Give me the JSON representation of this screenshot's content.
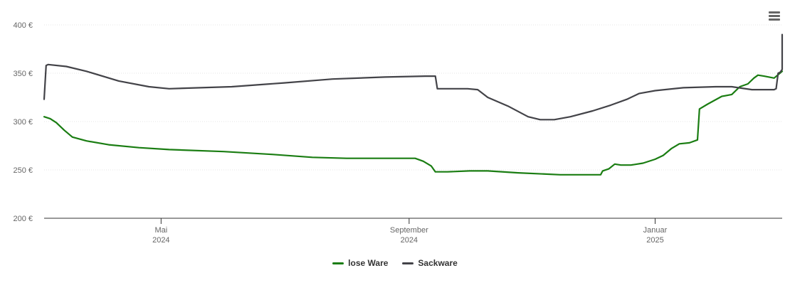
{
  "chart_data": {
    "type": "line",
    "title": "",
    "xlabel": "",
    "ylabel": "",
    "ylim": [
      200,
      400
    ],
    "y_ticks": [
      {
        "value": 400,
        "label": "400 €"
      },
      {
        "value": 350,
        "label": "350 €"
      },
      {
        "value": 300,
        "label": "300 €"
      },
      {
        "value": 250,
        "label": "250 €"
      },
      {
        "value": 200,
        "label": "200 €"
      }
    ],
    "xlim": [
      "2024-03-04",
      "2025-03-05"
    ],
    "x_ticks": [
      {
        "date": "2024-05-01",
        "label": "Mai",
        "sublabel": "2024"
      },
      {
        "date": "2024-09-01",
        "label": "September",
        "sublabel": "2024"
      },
      {
        "date": "2025-01-01",
        "label": "Januar",
        "sublabel": "2025"
      }
    ],
    "grid": "horizontal",
    "legend_position": "bottom-center",
    "series": [
      {
        "name": "lose Ware",
        "color": "#1a7d12",
        "points": [
          [
            "2024-03-04",
            305
          ],
          [
            "2024-03-07",
            303
          ],
          [
            "2024-03-10",
            299
          ],
          [
            "2024-03-14",
            291
          ],
          [
            "2024-03-18",
            284
          ],
          [
            "2024-03-25",
            280
          ],
          [
            "2024-04-05",
            276
          ],
          [
            "2024-04-20",
            273
          ],
          [
            "2024-05-05",
            271
          ],
          [
            "2024-06-01",
            269
          ],
          [
            "2024-06-25",
            266
          ],
          [
            "2024-07-15",
            263
          ],
          [
            "2024-08-01",
            262
          ],
          [
            "2024-08-20",
            262
          ],
          [
            "2024-09-01",
            262
          ],
          [
            "2024-09-04",
            262
          ],
          [
            "2024-09-08",
            259
          ],
          [
            "2024-09-12",
            254
          ],
          [
            "2024-09-14",
            248
          ],
          [
            "2024-09-20",
            248
          ],
          [
            "2024-10-01",
            249
          ],
          [
            "2024-10-10",
            249
          ],
          [
            "2024-10-25",
            247
          ],
          [
            "2024-11-15",
            245
          ],
          [
            "2024-12-05",
            245
          ],
          [
            "2024-12-06",
            249
          ],
          [
            "2024-12-09",
            251
          ],
          [
            "2024-12-12",
            256
          ],
          [
            "2024-12-15",
            255
          ],
          [
            "2024-12-20",
            255
          ],
          [
            "2024-12-26",
            257
          ],
          [
            "2025-01-01",
            261
          ],
          [
            "2025-01-05",
            265
          ],
          [
            "2025-01-09",
            272
          ],
          [
            "2025-01-13",
            277
          ],
          [
            "2025-01-18",
            278
          ],
          [
            "2025-01-22",
            281
          ],
          [
            "2025-01-23",
            313
          ],
          [
            "2025-01-27",
            318
          ],
          [
            "2025-02-03",
            326
          ],
          [
            "2025-02-08",
            328
          ],
          [
            "2025-02-12",
            336
          ],
          [
            "2025-02-16",
            339
          ],
          [
            "2025-02-19",
            345
          ],
          [
            "2025-02-21",
            348
          ],
          [
            "2025-02-24",
            347
          ],
          [
            "2025-03-01",
            345
          ],
          [
            "2025-03-05",
            352
          ]
        ]
      },
      {
        "name": "Sackware",
        "color": "#434348",
        "points": [
          [
            "2024-03-04",
            323
          ],
          [
            "2024-03-05",
            358
          ],
          [
            "2024-03-06",
            359
          ],
          [
            "2024-03-15",
            357
          ],
          [
            "2024-03-25",
            352
          ],
          [
            "2024-04-10",
            342
          ],
          [
            "2024-04-25",
            336
          ],
          [
            "2024-05-05",
            334
          ],
          [
            "2024-06-05",
            336
          ],
          [
            "2024-07-01",
            340
          ],
          [
            "2024-07-25",
            344
          ],
          [
            "2024-08-20",
            346
          ],
          [
            "2024-09-09",
            347
          ],
          [
            "2024-09-14",
            347
          ],
          [
            "2024-09-15",
            334
          ],
          [
            "2024-09-30",
            334
          ],
          [
            "2024-10-05",
            333
          ],
          [
            "2024-10-10",
            325
          ],
          [
            "2024-10-20",
            316
          ],
          [
            "2024-10-30",
            305
          ],
          [
            "2024-11-05",
            302
          ],
          [
            "2024-11-12",
            302
          ],
          [
            "2024-11-20",
            305
          ],
          [
            "2024-12-01",
            311
          ],
          [
            "2024-12-10",
            317
          ],
          [
            "2024-12-18",
            323
          ],
          [
            "2024-12-24",
            329
          ],
          [
            "2025-01-01",
            332
          ],
          [
            "2025-01-15",
            335
          ],
          [
            "2025-01-31",
            336
          ],
          [
            "2025-02-08",
            336
          ],
          [
            "2025-02-18",
            333
          ],
          [
            "2025-02-25",
            333
          ],
          [
            "2025-02-28",
            333
          ],
          [
            "2025-03-01",
            333
          ],
          [
            "2025-03-02",
            334
          ],
          [
            "2025-03-03",
            350
          ],
          [
            "2025-03-04",
            351
          ],
          [
            "2025-03-05",
            354
          ],
          [
            "2025-03-05",
            390
          ]
        ]
      }
    ]
  },
  "menu": {
    "icon": "hamburger-menu-icon"
  }
}
